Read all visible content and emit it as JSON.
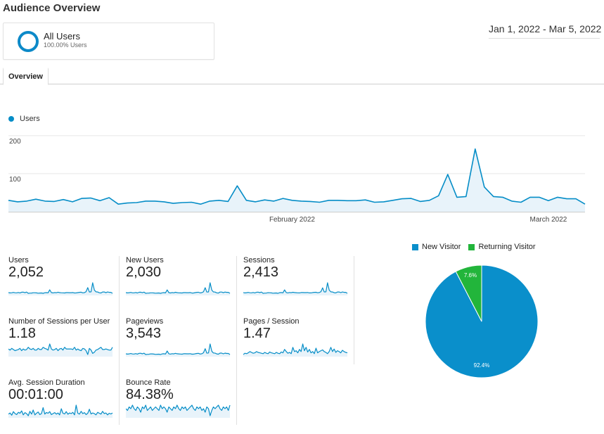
{
  "page": {
    "title": "Audience Overview"
  },
  "segment": {
    "name": "All Users",
    "subtitle": "100.00% Users"
  },
  "date_range": "Jan 1, 2022 - Mar 5, 2022",
  "tabs": [
    {
      "label": "Overview"
    }
  ],
  "colors": {
    "accent": "#058dc7",
    "green": "#22b53b",
    "pie_blue": "#0a8fcb"
  },
  "chart_data": [
    {
      "type": "area",
      "series": [
        {
          "name": "Users",
          "values": [
            30,
            26,
            28,
            33,
            28,
            27,
            32,
            26,
            35,
            36,
            29,
            37,
            20,
            23,
            24,
            28,
            28,
            26,
            22,
            24,
            25,
            20,
            28,
            30,
            27,
            68,
            30,
            26,
            31,
            28,
            35,
            30,
            28,
            27,
            25,
            30,
            30,
            29,
            29,
            31,
            25,
            26,
            30,
            34,
            35,
            27,
            30,
            42,
            98,
            38,
            40,
            165,
            65,
            40,
            38,
            28,
            25,
            38,
            38,
            29,
            38,
            34,
            34,
            20
          ]
        }
      ],
      "x_start": "2022-01-01",
      "x_end": "2022-03-05",
      "x_tick_labels": [
        "February 2022",
        "March 2022"
      ],
      "y_tick_labels": [
        "200",
        "100"
      ],
      "ylim": [
        0,
        220
      ],
      "grid": true,
      "legend_placement": "top-left"
    },
    {
      "type": "pie",
      "categories": [
        "New Visitor",
        "Returning Visitor"
      ],
      "values": [
        92.4,
        7.6
      ],
      "labels": [
        "92.4%",
        "7.6%"
      ],
      "colors": [
        "#0a8fcb",
        "#22b53b"
      ],
      "legend_placement": "top"
    }
  ],
  "metrics": [
    {
      "label": "Users",
      "value": "2,052",
      "spark": [
        30,
        26,
        28,
        33,
        28,
        27,
        32,
        26,
        35,
        36,
        29,
        37,
        20,
        23,
        24,
        28,
        28,
        26,
        22,
        24,
        25,
        20,
        28,
        30,
        27,
        68,
        30,
        26,
        31,
        28,
        35,
        30,
        28,
        27,
        25,
        30,
        30,
        29,
        29,
        31,
        25,
        26,
        30,
        34,
        35,
        27,
        30,
        42,
        98,
        38,
        40,
        165,
        65,
        40,
        38,
        28,
        25,
        38,
        38,
        29,
        38,
        34,
        34,
        20
      ]
    },
    {
      "label": "New Users",
      "value": "2,030",
      "spark": [
        29,
        26,
        28,
        32,
        27,
        27,
        31,
        25,
        34,
        35,
        28,
        36,
        20,
        23,
        24,
        27,
        27,
        25,
        22,
        24,
        25,
        20,
        27,
        29,
        26,
        66,
        29,
        25,
        30,
        27,
        34,
        29,
        27,
        26,
        25,
        29,
        29,
        28,
        28,
        30,
        24,
        25,
        29,
        33,
        34,
        26,
        29,
        41,
        95,
        37,
        39,
        160,
        63,
        39,
        37,
        27,
        24,
        37,
        37,
        28,
        37,
        33,
        33,
        20
      ]
    },
    {
      "label": "Sessions",
      "value": "2,413",
      "spark": [
        35,
        30,
        33,
        38,
        32,
        31,
        37,
        30,
        40,
        42,
        34,
        43,
        24,
        27,
        28,
        33,
        32,
        30,
        26,
        28,
        29,
        24,
        33,
        35,
        31,
        75,
        35,
        30,
        36,
        33,
        40,
        35,
        33,
        31,
        30,
        35,
        35,
        34,
        34,
        36,
        30,
        30,
        35,
        39,
        40,
        32,
        35,
        48,
        105,
        45,
        46,
        180,
        72,
        46,
        44,
        33,
        30,
        44,
        44,
        34,
        44,
        39,
        39,
        24
      ]
    },
    {
      "label": "Number of Sessions per User",
      "value": "1.18",
      "spark": [
        1.17,
        1.15,
        1.18,
        1.16,
        1.14,
        1.15,
        1.16,
        1.18,
        1.14,
        1.17,
        1.15,
        1.16,
        1.2,
        1.17,
        1.16,
        1.18,
        1.15,
        1.15,
        1.18,
        1.16,
        1.16,
        1.2,
        1.18,
        1.17,
        1.15,
        1.26,
        1.17,
        1.15,
        1.16,
        1.18,
        1.14,
        1.17,
        1.18,
        1.15,
        1.2,
        1.17,
        1.17,
        1.17,
        1.17,
        1.16,
        1.2,
        1.15,
        1.17,
        1.15,
        1.14,
        1.18,
        1.17,
        1.14,
        1.07,
        1.18,
        1.15,
        1.09,
        1.11,
        1.15,
        1.16,
        1.18,
        1.2,
        1.16,
        1.16,
        1.17,
        1.16,
        1.15,
        1.15,
        1.2
      ]
    },
    {
      "label": "Pageviews",
      "value": "3,543",
      "spark": [
        50,
        44,
        48,
        56,
        47,
        46,
        54,
        44,
        60,
        62,
        50,
        63,
        35,
        40,
        41,
        48,
        48,
        44,
        38,
        41,
        43,
        35,
        48,
        52,
        46,
        110,
        52,
        44,
        53,
        48,
        60,
        52,
        48,
        46,
        43,
        52,
        52,
        50,
        50,
        53,
        43,
        44,
        52,
        58,
        60,
        46,
        52,
        72,
        160,
        65,
        68,
        260,
        105,
        68,
        65,
        48,
        43,
        65,
        65,
        50,
        65,
        58,
        58,
        35
      ]
    },
    {
      "label": "Pages / Session",
      "value": "1.47",
      "spark": [
        1.43,
        1.46,
        1.45,
        1.47,
        1.5,
        1.48,
        1.46,
        1.47,
        1.5,
        1.48,
        1.47,
        1.46,
        1.45,
        1.48,
        1.46,
        1.45,
        1.49,
        1.47,
        1.46,
        1.45,
        1.48,
        1.46,
        1.45,
        1.49,
        1.47,
        1.55,
        1.5,
        1.46,
        1.48,
        1.45,
        1.6,
        1.5,
        1.52,
        1.47,
        1.55,
        1.5,
        1.68,
        1.52,
        1.6,
        1.49,
        1.55,
        1.47,
        1.5,
        1.45,
        1.58,
        1.47,
        1.5,
        1.52,
        1.54,
        1.5,
        1.48,
        1.45,
        1.5,
        1.6,
        1.5,
        1.56,
        1.48,
        1.52,
        1.5,
        1.47,
        1.53,
        1.5,
        1.48,
        1.47
      ]
    },
    {
      "label": "Avg. Session Duration",
      "value": "00:01:00",
      "spark": [
        55,
        62,
        48,
        70,
        58,
        52,
        66,
        60,
        75,
        50,
        64,
        58,
        45,
        72,
        55,
        80,
        50,
        60,
        68,
        52,
        58,
        95,
        55,
        65,
        60,
        70,
        52,
        58,
        64,
        55,
        62,
        50,
        88,
        60,
        56,
        70,
        54,
        62,
        58,
        66,
        50,
        110,
        60,
        55,
        72,
        58,
        64,
        52,
        60,
        85,
        56,
        62,
        58,
        50,
        66,
        60,
        55,
        72,
        58,
        62,
        50,
        60,
        56,
        62
      ]
    },
    {
      "label": "Bounce Rate",
      "value": "84.38%",
      "spark": [
        84,
        83,
        85,
        84,
        86,
        84,
        83,
        85,
        84,
        82,
        85,
        84,
        86,
        83,
        84,
        85,
        83,
        84,
        85,
        84,
        83,
        86,
        84,
        85,
        84,
        82,
        85,
        84,
        83,
        85,
        84,
        86,
        84,
        83,
        85,
        84,
        85,
        83,
        84,
        85,
        86,
        84,
        83,
        85,
        84,
        85,
        83,
        84,
        82,
        85,
        84,
        80,
        83,
        85,
        84,
        85,
        86,
        84,
        83,
        85,
        84,
        85,
        83,
        86
      ]
    }
  ]
}
